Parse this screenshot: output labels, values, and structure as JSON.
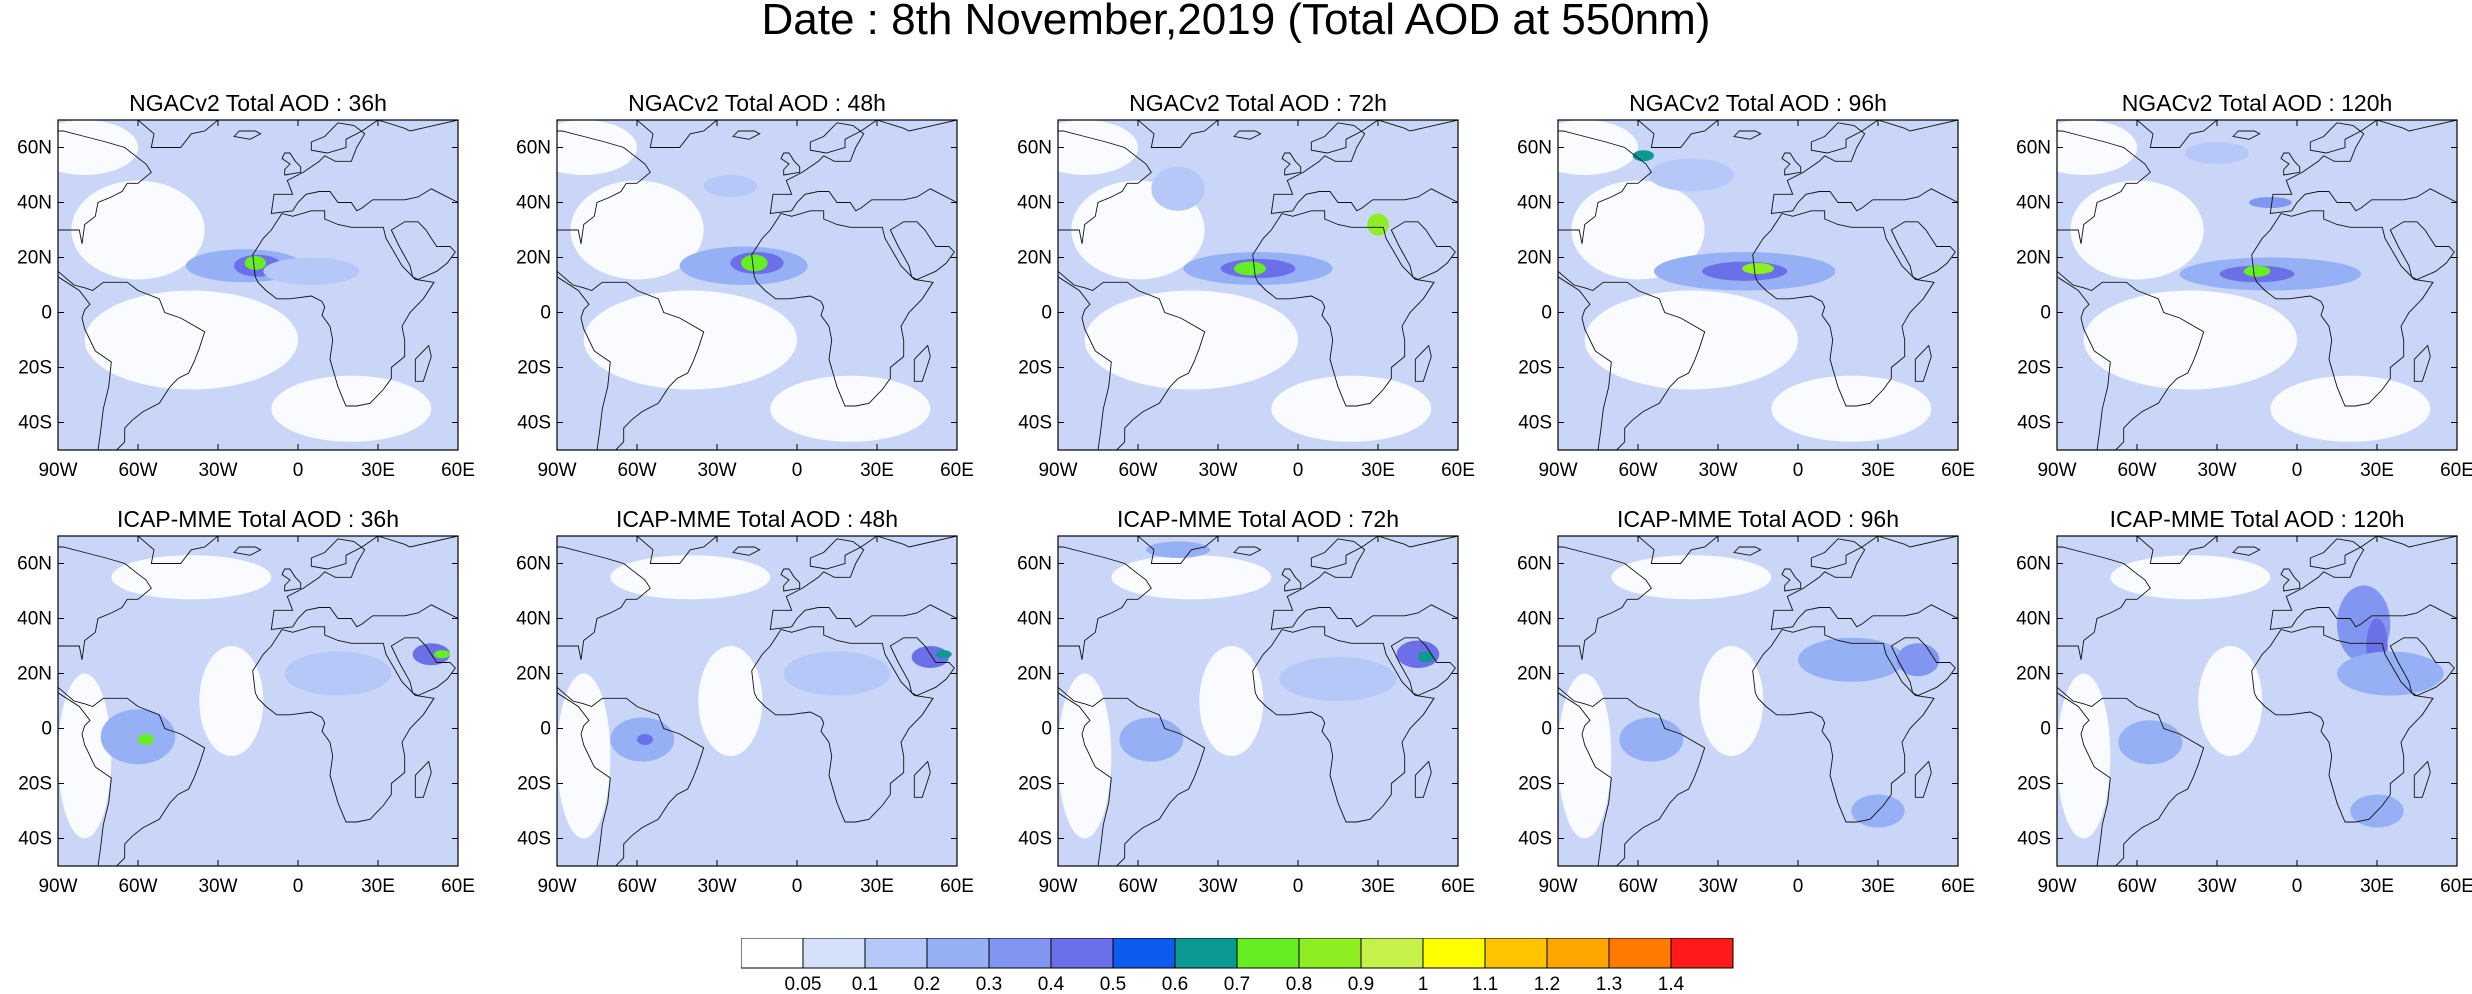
{
  "title": "Date : 8th November,2019 (Total AOD at 550nm)",
  "colors": {
    "ocean_background": "#c9d6f7",
    "low_aod": "#ffffff",
    "coastline": "#111111"
  },
  "lat_ticks": [
    "60N",
    "40N",
    "20N",
    "0",
    "20S",
    "40S"
  ],
  "lon_ticks": [
    "90W",
    "60W",
    "30W",
    "0",
    "30E",
    "60E"
  ],
  "panels": [
    {
      "title": "NGACv2 Total AOD : 36h",
      "model": "NGACv2",
      "lead": "36h"
    },
    {
      "title": "NGACv2 Total AOD : 48h",
      "model": "NGACv2",
      "lead": "48h"
    },
    {
      "title": "NGACv2 Total AOD : 72h",
      "model": "NGACv2",
      "lead": "72h"
    },
    {
      "title": "NGACv2 Total AOD : 96h",
      "model": "NGACv2",
      "lead": "96h"
    },
    {
      "title": "NGACv2 Total AOD : 120h",
      "model": "NGACv2",
      "lead": "120h"
    },
    {
      "title": "ICAP-MME Total AOD : 36h",
      "model": "ICAP-MME",
      "lead": "36h"
    },
    {
      "title": "ICAP-MME Total AOD : 48h",
      "model": "ICAP-MME",
      "lead": "48h"
    },
    {
      "title": "ICAP-MME Total AOD : 72h",
      "model": "ICAP-MME",
      "lead": "72h"
    },
    {
      "title": "ICAP-MME Total AOD : 96h",
      "model": "ICAP-MME",
      "lead": "96h"
    },
    {
      "title": "ICAP-MME Total AOD : 120h",
      "model": "ICAP-MME",
      "lead": "120h"
    }
  ],
  "colorbar": {
    "labels": [
      "0.05",
      "0.1",
      "0.2",
      "0.3",
      "0.4",
      "0.5",
      "0.6",
      "0.7",
      "0.8",
      "0.9",
      "1",
      "1.1",
      "1.2",
      "1.3",
      "1.4"
    ],
    "colors": [
      "#ffffff",
      "#d5e1fb",
      "#b6c8f7",
      "#96b0f5",
      "#8196f0",
      "#6b70e8",
      "#0c5cf0",
      "#0a9a93",
      "#66ee22",
      "#8fee22",
      "#c6f04a",
      "#ffff00",
      "#ffc400",
      "#ffa500",
      "#ff7a00",
      "#ff1a1a"
    ]
  }
}
